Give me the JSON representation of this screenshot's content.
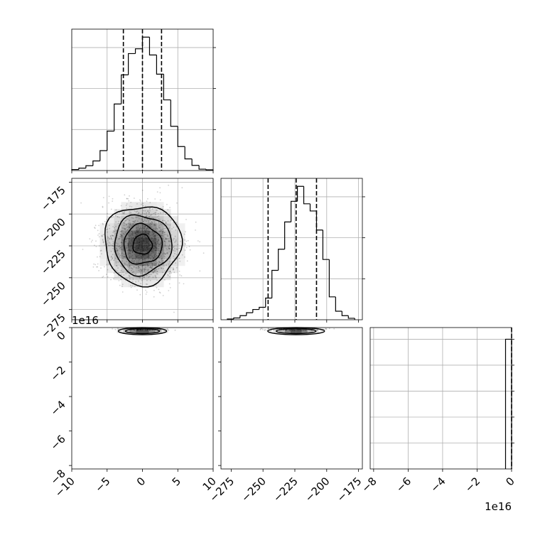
{
  "chart_data": [
    {
      "id": "hist_p0",
      "type": "histogram",
      "position_in_grid": "row 1, col 1",
      "grid": true,
      "x_range": [
        -10,
        10
      ],
      "bin_edges": [
        -10,
        -9,
        -8,
        -7,
        -6,
        -5,
        -4,
        -3,
        -2,
        -1,
        0,
        1,
        2,
        3,
        4,
        5,
        6,
        7,
        8,
        9,
        10
      ],
      "counts": [
        0.3,
        0.7,
        1.4,
        2.8,
        5.8,
        11.5,
        19.4,
        27.9,
        34.1,
        35.5,
        38.9,
        33.7,
        28.1,
        20.6,
        12.9,
        7.0,
        3.4,
        1.5,
        0.4,
        0.2
      ],
      "quantile_lines": [
        -2.7,
        0.0,
        2.7
      ],
      "tick_labels_shown": false
    },
    {
      "id": "scatter_p0_p1",
      "type": "scatter-contour",
      "position_in_grid": "row 2, col 1",
      "grid": true,
      "x_range": [
        -10,
        10
      ],
      "y_range": [
        -283,
        -172
      ],
      "y_ticks": [
        -175,
        -200,
        -225,
        -250,
        -275
      ],
      "y_tick_labels": [
        "−175",
        "−200",
        "−225",
        "−250",
        "−275"
      ],
      "center": [
        0,
        -224
      ],
      "contour_levels_sigma": [
        0.5,
        1.0,
        1.5,
        2.0
      ]
    },
    {
      "id": "hist_p1",
      "type": "histogram",
      "position_in_grid": "row 2, col 2",
      "grid": true,
      "x_range": [
        -283,
        -172
      ],
      "bin_edges": [
        -278,
        -273,
        -268,
        -263,
        -258,
        -253,
        -248,
        -243,
        -238,
        -233,
        -228,
        -223,
        -218,
        -213,
        -208,
        -203,
        -198,
        -193,
        -188,
        -183,
        -178
      ],
      "counts": [
        0.5,
        1.2,
        2.8,
        4.8,
        7.0,
        8.5,
        14.8,
        33.7,
        48.1,
        66.7,
        80.8,
        91.0,
        79.1,
        74.2,
        61.2,
        41.1,
        15.6,
        5.8,
        2.8,
        1.0
      ],
      "quantile_lines": [
        -246,
        -224,
        -208
      ],
      "tick_labels_shown": false
    },
    {
      "id": "scatter_p0_p2",
      "type": "scatter-contour",
      "position_in_grid": "row 3, col 1",
      "grid": false,
      "x_range": [
        -10,
        10
      ],
      "x_ticks": [
        -10,
        -5,
        0,
        5,
        10
      ],
      "x_tick_labels": [
        "−10",
        "−5",
        "0",
        "5",
        "10"
      ],
      "y_range": [
        -8.2,
        0.0
      ],
      "y_ticks": [
        0,
        -2,
        -4,
        -6,
        -8
      ],
      "y_tick_labels": [
        "0",
        "−2",
        "−4",
        "−6",
        "−8"
      ],
      "y_offset_label": "1e16",
      "note": "samples concentrated near y ≈ 0"
    },
    {
      "id": "scatter_p1_p2",
      "type": "scatter-contour",
      "position_in_grid": "row 3, col 2",
      "grid": false,
      "x_range": [
        -283,
        -172
      ],
      "x_ticks": [
        -275,
        -250,
        -225,
        -200,
        -175
      ],
      "x_tick_labels": [
        "−275",
        "−250",
        "−225",
        "−200",
        "−175"
      ],
      "y_range": [
        -8.2,
        0.0
      ],
      "note": "samples concentrated near y ≈ 0"
    },
    {
      "id": "hist_p2",
      "type": "histogram",
      "position_in_grid": "row 3, col 3",
      "grid": true,
      "x_range": [
        -8.2,
        0.0
      ],
      "x_ticks": [
        -8,
        -6,
        -4,
        -2,
        0
      ],
      "x_tick_labels": [
        "−8",
        "−6",
        "−4",
        "−2",
        "0"
      ],
      "x_offset_label": "1e16",
      "note": "single populated bin adjacent to 0 (data units ×1e16)",
      "bins": [
        {
          "left": -0.35,
          "right": 0.0,
          "count": 1.0
        }
      ],
      "y_max": 1.0
    }
  ]
}
